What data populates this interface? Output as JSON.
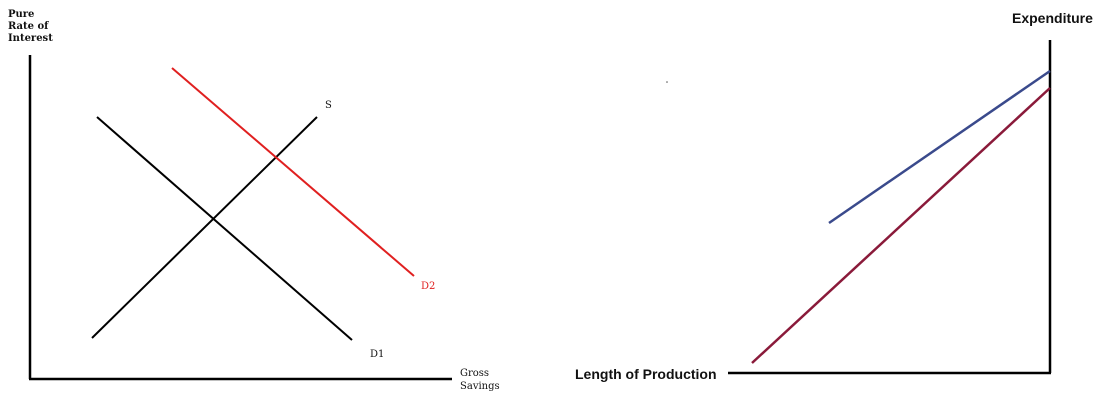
{
  "left_diagram": {
    "y_axis_label_lines": [
      "Pure",
      "Rate of",
      "Interest"
    ],
    "x_axis_label_lines": [
      "Gross",
      "Savings"
    ],
    "curves": [
      {
        "label": "S",
        "color": "#000000"
      },
      {
        "label": "D1",
        "color": "#000000"
      },
      {
        "label": "D2",
        "color": "#e02020"
      }
    ]
  },
  "right_diagram": {
    "y_axis_label": "Expenditure",
    "x_axis_label": "Length of Production",
    "lines": [
      {
        "name": "upper-line",
        "color": "#3a4a8c"
      },
      {
        "name": "lower-line",
        "color": "#8a1a3a"
      }
    ]
  },
  "colors": {
    "axis": "#000000",
    "supply": "#000000",
    "demand1": "#000000",
    "demand2": "#e02020",
    "right_upper": "#3a4a8c",
    "right_lower": "#8a1a3a"
  }
}
